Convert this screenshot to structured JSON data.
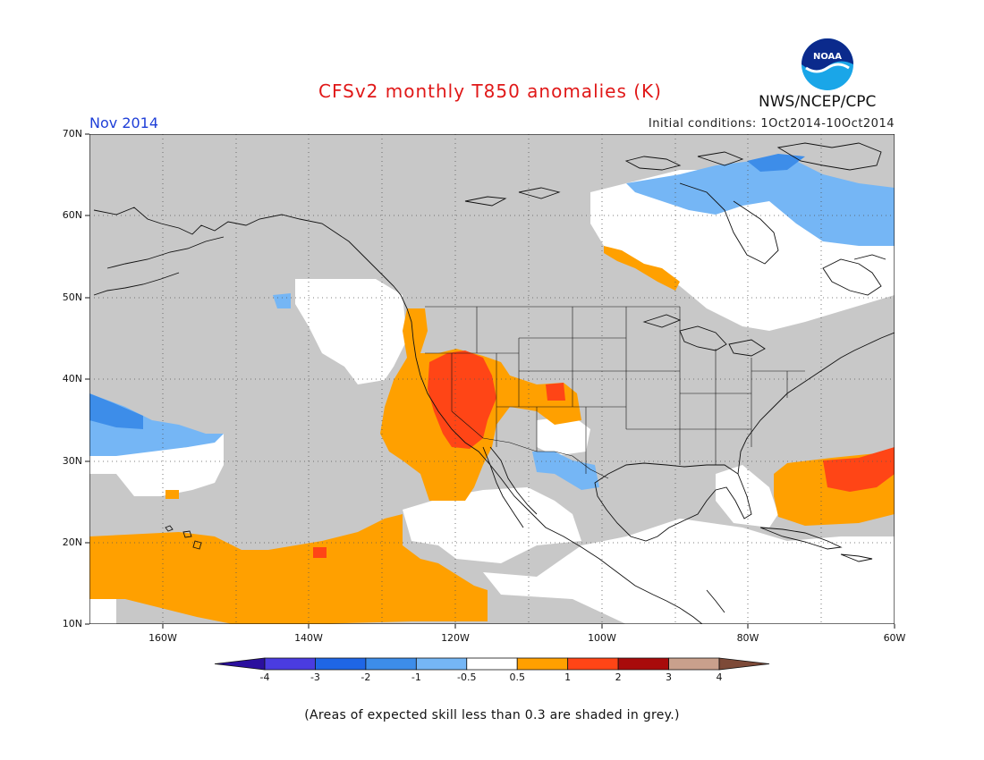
{
  "header": {
    "title": "CFSv2 monthly T850 anomalies (K)",
    "month": "Nov 2014",
    "initial_conditions": "Initial conditions: 1Oct2014-10Oct2014",
    "agency": "NWS/NCEP/CPC",
    "logo_text": "NOAA"
  },
  "map": {
    "lon_range": [
      -170,
      -60
    ],
    "lat_range": [
      10,
      70
    ],
    "lat_labels": [
      "70N",
      "60N",
      "50N",
      "40N",
      "30N",
      "20N",
      "10N"
    ],
    "lon_labels": [
      "160W",
      "140W",
      "120W",
      "100W",
      "80W",
      "60W"
    ],
    "grid": true,
    "low_skill_color": "#c8c8c8"
  },
  "legend": {
    "colors": [
      "#2b0f9e",
      "#4a3ce0",
      "#1f66e6",
      "#3d8de9",
      "#75b6f5",
      "#ffffff",
      "#ffa000",
      "#ff4516",
      "#a80b0b",
      "#c9a08c",
      "#7d4a38"
    ],
    "labels": [
      "-4",
      "-3",
      "-2",
      "-1",
      "-0.5",
      "0.5",
      "1",
      "2",
      "3",
      "4"
    ]
  },
  "footnote": "(Areas of expected skill less than 0.3 are shaded in grey.)"
}
